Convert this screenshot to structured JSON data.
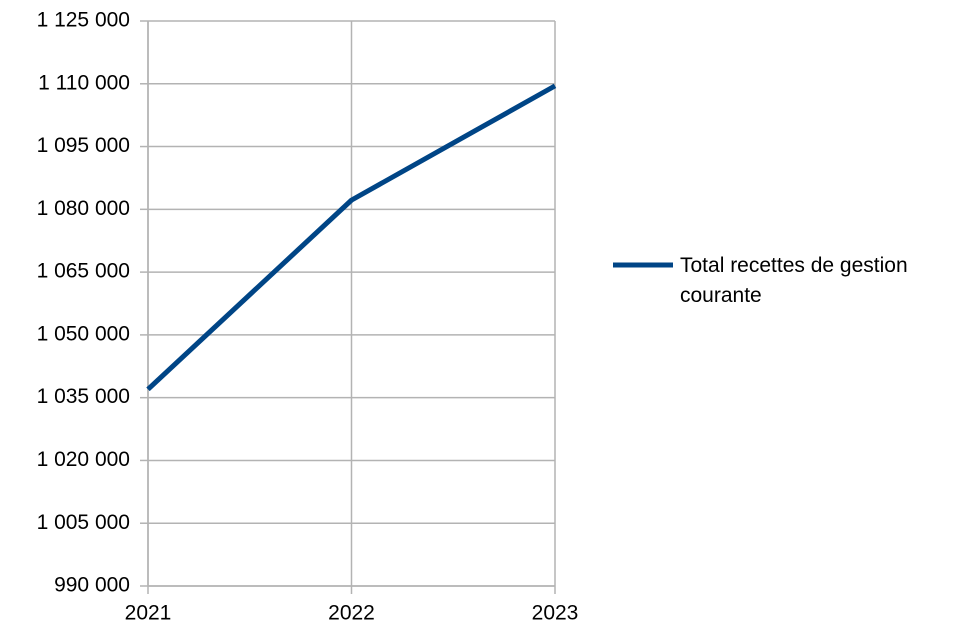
{
  "chart_data": {
    "type": "line",
    "categories": [
      "2021",
      "2022",
      "2023"
    ],
    "series": [
      {
        "name": "Total recettes de gestion courante",
        "color": "#004586",
        "values": [
          1037000,
          1082200,
          1109500
        ]
      }
    ],
    "ylim": [
      990000,
      1125000
    ],
    "yticks": [
      {
        "value": 990000,
        "label": "990 000"
      },
      {
        "value": 1005000,
        "label": "1 005 000"
      },
      {
        "value": 1020000,
        "label": "1 020 000"
      },
      {
        "value": 1035000,
        "label": "1 035 000"
      },
      {
        "value": 1050000,
        "label": "1 050 000"
      },
      {
        "value": 1065000,
        "label": "1 065 000"
      },
      {
        "value": 1080000,
        "label": "1 080 000"
      },
      {
        "value": 1095000,
        "label": "1 095 000"
      },
      {
        "value": 1110000,
        "label": "1 110 000"
      },
      {
        "value": 1125000,
        "label": "1 125 000"
      }
    ],
    "grid": true,
    "legend": "right"
  }
}
